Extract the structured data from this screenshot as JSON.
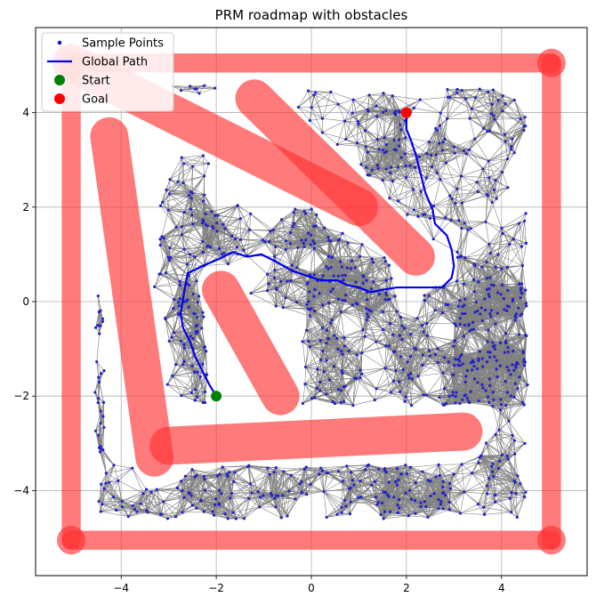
{
  "chart_data": {
    "type": "scatter",
    "title": "PRM roadmap with obstacles",
    "xlabel": "",
    "ylabel": "",
    "xlim": [
      -5.8,
      5.8
    ],
    "ylim": [
      -5.8,
      5.8
    ],
    "xticks": [
      -4,
      -2,
      0,
      2,
      4
    ],
    "yticks": [
      -4,
      -2,
      0,
      2,
      4
    ],
    "grid": true,
    "legend_position": "top-left",
    "legend": [
      {
        "key": "samples",
        "label": "Sample Points",
        "marker": "dot",
        "color": "#0000cc"
      },
      {
        "key": "path",
        "label": "Global Path",
        "marker": "line",
        "color": "#0000ee"
      },
      {
        "key": "start",
        "label": "Start",
        "marker": "circle",
        "color": "#008000"
      },
      {
        "key": "goal",
        "label": "Goal",
        "marker": "circle",
        "color": "#ff0000"
      }
    ],
    "colors": {
      "obstacle": "#ff3333",
      "edge": "#808080",
      "sample": "#2222cc",
      "path": "#0000ee",
      "start": "#008000",
      "goal": "#ff0000"
    },
    "obstacles": [
      {
        "from": [
          -5.05,
          -5.05
        ],
        "to": [
          5.05,
          -5.05
        ],
        "width": 0.2
      },
      {
        "from": [
          5.05,
          -5.05
        ],
        "to": [
          5.05,
          5.05
        ],
        "width": 0.2
      },
      {
        "from": [
          5.05,
          5.05
        ],
        "to": [
          -5.05,
          5.05
        ],
        "width": 0.2
      },
      {
        "from": [
          -5.05,
          5.05
        ],
        "to": [
          -5.05,
          -5.05
        ],
        "width": 0.2
      },
      {
        "from": [
          -4.25,
          3.5
        ],
        "to": [
          -3.3,
          -3.3
        ],
        "width": 0.4
      },
      {
        "from": [
          -5.05,
          5.05
        ],
        "to": [
          1.0,
          2.0
        ],
        "width": 0.4
      },
      {
        "from": [
          -1.2,
          4.3
        ],
        "to": [
          2.2,
          0.95
        ],
        "width": 0.4
      },
      {
        "from": [
          -1.9,
          0.25
        ],
        "to": [
          -0.65,
          -2.0
        ],
        "width": 0.4
      },
      {
        "from": [
          -3.0,
          -3.05
        ],
        "to": [
          3.2,
          -2.75
        ],
        "width": 0.4
      }
    ],
    "corner_disks": [
      [
        -5.05,
        -5.05
      ],
      [
        5.05,
        -5.05
      ],
      [
        5.05,
        5.05
      ],
      [
        -5.05,
        5.05
      ]
    ],
    "sample_regions": [
      {
        "x": [
          -4.55,
          4.55
        ],
        "y": [
          -4.6,
          -3.45
        ],
        "n": 230
      },
      {
        "x": [
          -4.55,
          -4.35
        ],
        "y": [
          -3.2,
          0.2
        ],
        "n": 30
      },
      {
        "x": [
          -3.3,
          -2.15
        ],
        "y": [
          -2.2,
          3.1
        ],
        "n": 95
      },
      {
        "x": [
          -2.2,
          0.9
        ],
        "y": [
          -0.2,
          2.1
        ],
        "n": 90
      },
      {
        "x": [
          -2.8,
          -2.2
        ],
        "y": [
          -2.2,
          1.3
        ],
        "n": 25
      },
      {
        "x": [
          -0.2,
          4.55
        ],
        "y": [
          -2.2,
          0.4
        ],
        "n": 260
      },
      {
        "x": [
          -0.3,
          1.8
        ],
        "y": [
          0.4,
          1.6
        ],
        "n": 45
      },
      {
        "x": [
          3.0,
          4.55
        ],
        "y": [
          -3.45,
          1.0
        ],
        "n": 110
      },
      {
        "x": [
          1.5,
          4.55
        ],
        "y": [
          0.9,
          4.5
        ],
        "n": 150
      },
      {
        "x": [
          -0.3,
          1.6
        ],
        "y": [
          2.6,
          4.5
        ],
        "n": 40
      },
      {
        "x": [
          -3.0,
          -1.95
        ],
        "y": [
          4.4,
          4.6
        ],
        "n": 8
      }
    ],
    "connection_radius": 0.6,
    "path": [
      [
        -2.0,
        -2.0
      ],
      [
        -2.15,
        -1.75
      ],
      [
        -2.3,
        -1.45
      ],
      [
        -2.45,
        -1.15
      ],
      [
        -2.55,
        -0.85
      ],
      [
        -2.7,
        -0.55
      ],
      [
        -2.75,
        -0.25
      ],
      [
        -2.7,
        0.05
      ],
      [
        -2.65,
        0.35
      ],
      [
        -2.6,
        0.6
      ],
      [
        -2.3,
        0.75
      ],
      [
        -1.95,
        0.9
      ],
      [
        -1.65,
        1.05
      ],
      [
        -1.35,
        0.95
      ],
      [
        -1.05,
        1.0
      ],
      [
        -0.75,
        0.85
      ],
      [
        -0.4,
        0.65
      ],
      [
        -0.1,
        0.55
      ],
      [
        0.2,
        0.45
      ],
      [
        0.55,
        0.45
      ],
      [
        0.75,
        0.35
      ],
      [
        1.0,
        0.3
      ],
      [
        1.25,
        0.2
      ],
      [
        1.5,
        0.25
      ],
      [
        1.8,
        0.3
      ],
      [
        2.1,
        0.3
      ],
      [
        2.45,
        0.3
      ],
      [
        2.75,
        0.3
      ],
      [
        2.95,
        0.5
      ],
      [
        3.0,
        0.75
      ],
      [
        2.95,
        1.1
      ],
      [
        2.85,
        1.4
      ],
      [
        2.6,
        1.65
      ],
      [
        2.55,
        1.95
      ],
      [
        2.4,
        2.3
      ],
      [
        2.3,
        2.7
      ],
      [
        2.2,
        3.1
      ],
      [
        2.1,
        3.4
      ],
      [
        2.0,
        3.65
      ],
      [
        2.0,
        4.0
      ]
    ],
    "start": [
      -2.0,
      -2.0
    ],
    "goal": [
      2.0,
      4.0
    ]
  }
}
